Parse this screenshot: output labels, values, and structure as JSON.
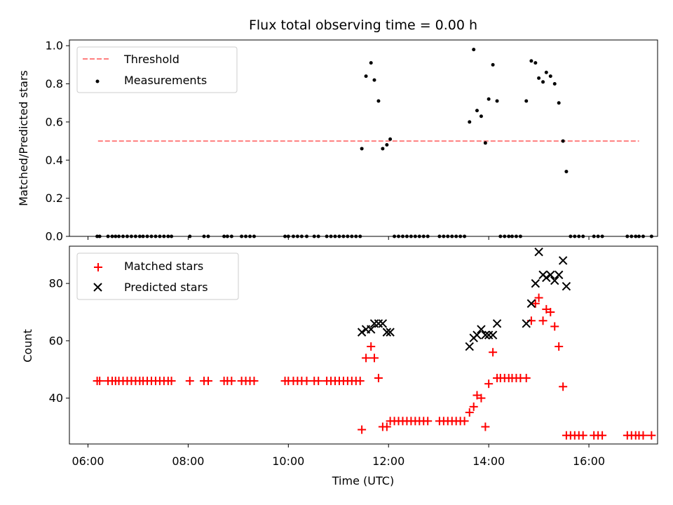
{
  "chart_data": [
    {
      "type": "scatter",
      "title": "Flux total observing time = 0.00 h",
      "xlabel": "",
      "ylabel": "Matched/Predicted stars",
      "xlim": [
        "06:00",
        "17:20"
      ],
      "ylim": [
        0,
        1.03
      ],
      "yticks": [
        "0.0",
        "0.2",
        "0.4",
        "0.6",
        "0.8",
        "1.0"
      ],
      "grid": false,
      "legend_placement": "upper-left",
      "series": [
        {
          "name": "Threshold",
          "style": "dashed-line",
          "color": "#ff7f7f",
          "points": [
            [
              "06:12",
              0.5
            ],
            [
              "17:00",
              0.5
            ]
          ]
        },
        {
          "name": "Measurements",
          "style": "dot",
          "color": "#000000",
          "points": [
            [
              "06:11",
              0
            ],
            [
              "06:14",
              0
            ],
            [
              "06:24",
              0
            ],
            [
              "06:29",
              0
            ],
            [
              "06:33",
              0
            ],
            [
              "06:37",
              0
            ],
            [
              "06:42",
              0
            ],
            [
              "06:47",
              0
            ],
            [
              "06:52",
              0
            ],
            [
              "06:57",
              0
            ],
            [
              "07:02",
              0
            ],
            [
              "07:06",
              0
            ],
            [
              "07:11",
              0
            ],
            [
              "07:16",
              0
            ],
            [
              "07:21",
              0
            ],
            [
              "07:26",
              0
            ],
            [
              "07:31",
              0
            ],
            [
              "07:36",
              0
            ],
            [
              "07:40",
              0
            ],
            [
              "08:02",
              0
            ],
            [
              "08:19",
              0
            ],
            [
              "08:24",
              0
            ],
            [
              "08:43",
              0
            ],
            [
              "08:47",
              0
            ],
            [
              "08:52",
              0
            ],
            [
              "09:04",
              0
            ],
            [
              "09:09",
              0
            ],
            [
              "09:14",
              0
            ],
            [
              "09:19",
              0
            ],
            [
              "09:56",
              0
            ],
            [
              "10:00",
              0
            ],
            [
              "10:06",
              0
            ],
            [
              "10:11",
              0
            ],
            [
              "10:16",
              0
            ],
            [
              "10:22",
              0
            ],
            [
              "10:31",
              0
            ],
            [
              "10:36",
              0
            ],
            [
              "10:46",
              0
            ],
            [
              "10:51",
              0
            ],
            [
              "10:56",
              0
            ],
            [
              "11:01",
              0
            ],
            [
              "11:06",
              0
            ],
            [
              "11:11",
              0
            ],
            [
              "11:16",
              0
            ],
            [
              "11:21",
              0
            ],
            [
              "11:26",
              0
            ],
            [
              "11:28",
              0.46
            ],
            [
              "11:33",
              0.84
            ],
            [
              "11:39",
              0.91
            ],
            [
              "11:43",
              0.82
            ],
            [
              "11:48",
              0.71
            ],
            [
              "11:53",
              0.46
            ],
            [
              "11:58",
              0.48
            ],
            [
              "12:02",
              0.51
            ],
            [
              "12:07",
              0
            ],
            [
              "12:12",
              0
            ],
            [
              "12:17",
              0
            ],
            [
              "12:22",
              0
            ],
            [
              "12:27",
              0
            ],
            [
              "12:32",
              0
            ],
            [
              "12:37",
              0
            ],
            [
              "12:42",
              0
            ],
            [
              "12:47",
              0
            ],
            [
              "13:01",
              0
            ],
            [
              "13:06",
              0
            ],
            [
              "13:11",
              0
            ],
            [
              "13:16",
              0
            ],
            [
              "13:21",
              0
            ],
            [
              "13:26",
              0
            ],
            [
              "13:31",
              0
            ],
            [
              "13:37",
              0.6
            ],
            [
              "13:42",
              0.98
            ],
            [
              "13:46",
              0.66
            ],
            [
              "13:51",
              0.63
            ],
            [
              "13:56",
              0.49
            ],
            [
              "14:00",
              0.72
            ],
            [
              "14:05",
              0.9
            ],
            [
              "14:10",
              0.71
            ],
            [
              "14:14",
              0
            ],
            [
              "14:19",
              0
            ],
            [
              "14:24",
              0
            ],
            [
              "14:28",
              0
            ],
            [
              "14:33",
              0
            ],
            [
              "14:38",
              0
            ],
            [
              "14:45",
              0.71
            ],
            [
              "14:51",
              0.92
            ],
            [
              "14:56",
              0.91
            ],
            [
              "15:00",
              0.83
            ],
            [
              "15:05",
              0.81
            ],
            [
              "15:09",
              0.86
            ],
            [
              "15:14",
              0.84
            ],
            [
              "15:19",
              0.8
            ],
            [
              "15:24",
              0.7
            ],
            [
              "15:29",
              0.5
            ],
            [
              "15:33",
              0.34
            ],
            [
              "15:38",
              0
            ],
            [
              "15:43",
              0
            ],
            [
              "15:48",
              0
            ],
            [
              "15:53",
              0
            ],
            [
              "16:06",
              0
            ],
            [
              "16:11",
              0
            ],
            [
              "16:16",
              0
            ],
            [
              "16:46",
              0
            ],
            [
              "16:51",
              0
            ],
            [
              "16:56",
              0
            ],
            [
              "17:00",
              0
            ],
            [
              "17:05",
              0
            ],
            [
              "17:15",
              0
            ]
          ]
        }
      ]
    },
    {
      "type": "scatter",
      "title": "",
      "xlabel": "Time (UTC)",
      "ylabel": "Count",
      "xlim": [
        "06:00",
        "17:20"
      ],
      "ylim": [
        24,
        93
      ],
      "xticks": [
        "06:00",
        "08:00",
        "10:00",
        "12:00",
        "14:00",
        "16:00"
      ],
      "yticks": [
        "40",
        "60",
        "80"
      ],
      "grid": false,
      "legend_placement": "upper-left",
      "series": [
        {
          "name": "Matched stars",
          "style": "plus",
          "color": "#ff0000",
          "points": [
            [
              "06:11",
              46
            ],
            [
              "06:14",
              46
            ],
            [
              "06:24",
              46
            ],
            [
              "06:29",
              46
            ],
            [
              "06:33",
              46
            ],
            [
              "06:37",
              46
            ],
            [
              "06:42",
              46
            ],
            [
              "06:47",
              46
            ],
            [
              "06:52",
              46
            ],
            [
              "06:57",
              46
            ],
            [
              "07:02",
              46
            ],
            [
              "07:06",
              46
            ],
            [
              "07:11",
              46
            ],
            [
              "07:16",
              46
            ],
            [
              "07:21",
              46
            ],
            [
              "07:26",
              46
            ],
            [
              "07:31",
              46
            ],
            [
              "07:36",
              46
            ],
            [
              "07:40",
              46
            ],
            [
              "08:02",
              46
            ],
            [
              "08:19",
              46
            ],
            [
              "08:24",
              46
            ],
            [
              "08:43",
              46
            ],
            [
              "08:47",
              46
            ],
            [
              "08:52",
              46
            ],
            [
              "09:04",
              46
            ],
            [
              "09:09",
              46
            ],
            [
              "09:14",
              46
            ],
            [
              "09:19",
              46
            ],
            [
              "09:56",
              46
            ],
            [
              "10:00",
              46
            ],
            [
              "10:06",
              46
            ],
            [
              "10:11",
              46
            ],
            [
              "10:16",
              46
            ],
            [
              "10:22",
              46
            ],
            [
              "10:31",
              46
            ],
            [
              "10:36",
              46
            ],
            [
              "10:46",
              46
            ],
            [
              "10:51",
              46
            ],
            [
              "10:56",
              46
            ],
            [
              "11:01",
              46
            ],
            [
              "11:06",
              46
            ],
            [
              "11:11",
              46
            ],
            [
              "11:16",
              46
            ],
            [
              "11:21",
              46
            ],
            [
              "11:26",
              46
            ],
            [
              "11:28",
              29
            ],
            [
              "11:33",
              54
            ],
            [
              "11:39",
              58
            ],
            [
              "11:43",
              54
            ],
            [
              "11:48",
              47
            ],
            [
              "11:53",
              30
            ],
            [
              "11:58",
              30
            ],
            [
              "12:02",
              32
            ],
            [
              "12:07",
              32
            ],
            [
              "12:12",
              32
            ],
            [
              "12:17",
              32
            ],
            [
              "12:22",
              32
            ],
            [
              "12:27",
              32
            ],
            [
              "12:32",
              32
            ],
            [
              "12:37",
              32
            ],
            [
              "12:42",
              32
            ],
            [
              "12:47",
              32
            ],
            [
              "13:01",
              32
            ],
            [
              "13:06",
              32
            ],
            [
              "13:11",
              32
            ],
            [
              "13:16",
              32
            ],
            [
              "13:21",
              32
            ],
            [
              "13:26",
              32
            ],
            [
              "13:31",
              32
            ],
            [
              "13:37",
              35
            ],
            [
              "13:42",
              37
            ],
            [
              "13:46",
              41
            ],
            [
              "13:51",
              40
            ],
            [
              "13:56",
              30
            ],
            [
              "14:00",
              45
            ],
            [
              "14:05",
              56
            ],
            [
              "14:10",
              47
            ],
            [
              "14:14",
              47
            ],
            [
              "14:19",
              47
            ],
            [
              "14:24",
              47
            ],
            [
              "14:28",
              47
            ],
            [
              "14:33",
              47
            ],
            [
              "14:38",
              47
            ],
            [
              "14:45",
              47
            ],
            [
              "14:51",
              67
            ],
            [
              "14:56",
              73
            ],
            [
              "15:00",
              75
            ],
            [
              "15:05",
              67
            ],
            [
              "15:09",
              71
            ],
            [
              "15:14",
              70
            ],
            [
              "15:19",
              65
            ],
            [
              "15:24",
              58
            ],
            [
              "15:29",
              44
            ],
            [
              "15:33",
              27
            ],
            [
              "15:38",
              27
            ],
            [
              "15:43",
              27
            ],
            [
              "15:48",
              27
            ],
            [
              "15:53",
              27
            ],
            [
              "16:06",
              27
            ],
            [
              "16:11",
              27
            ],
            [
              "16:16",
              27
            ],
            [
              "16:46",
              27
            ],
            [
              "16:51",
              27
            ],
            [
              "16:56",
              27
            ],
            [
              "17:00",
              27
            ],
            [
              "17:05",
              27
            ],
            [
              "17:15",
              27
            ]
          ]
        },
        {
          "name": "Predicted stars",
          "style": "x",
          "color": "#000000",
          "points": [
            [
              "11:28",
              63
            ],
            [
              "11:33",
              64
            ],
            [
              "11:39",
              64
            ],
            [
              "11:43",
              66
            ],
            [
              "11:48",
              66
            ],
            [
              "11:53",
              66
            ],
            [
              "11:58",
              63
            ],
            [
              "12:02",
              63
            ],
            [
              "13:37",
              58
            ],
            [
              "13:42",
              61
            ],
            [
              "13:46",
              62
            ],
            [
              "13:51",
              64
            ],
            [
              "13:56",
              62
            ],
            [
              "14:00",
              62
            ],
            [
              "14:05",
              62
            ],
            [
              "14:10",
              66
            ],
            [
              "14:45",
              66
            ],
            [
              "14:51",
              73
            ],
            [
              "14:56",
              80
            ],
            [
              "15:00",
              91
            ],
            [
              "15:05",
              83
            ],
            [
              "15:09",
              82
            ],
            [
              "15:14",
              83
            ],
            [
              "15:19",
              81
            ],
            [
              "15:24",
              83
            ],
            [
              "15:29",
              88
            ],
            [
              "15:33",
              79
            ]
          ]
        }
      ]
    }
  ]
}
